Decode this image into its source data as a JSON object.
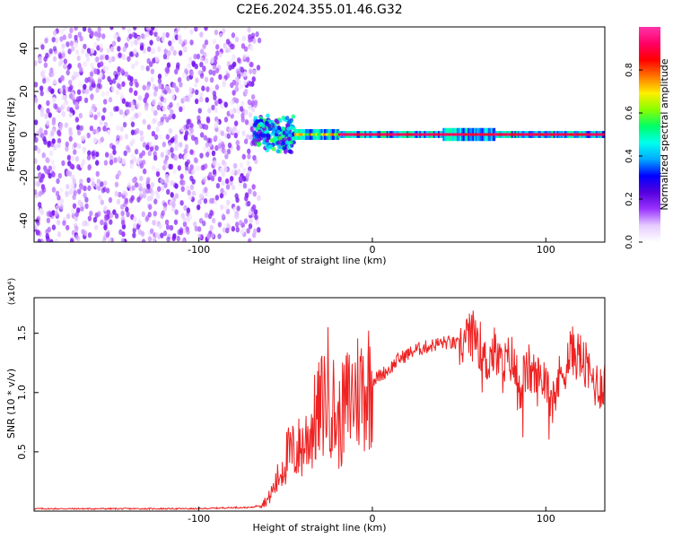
{
  "figure": {
    "title": "C2E6.2024.355.01.46.G32"
  },
  "chart_data": [
    {
      "type": "heatmap",
      "xlabel": "Height of straight line (km)",
      "ylabel": "Frequency (Hz)",
      "xlim": [
        -195,
        134
      ],
      "ylim": [
        -50,
        50
      ],
      "x_ticks": [
        -100,
        0,
        100
      ],
      "y_ticks": [
        -40,
        -20,
        0,
        20,
        40
      ],
      "colorbar": {
        "label": "Normalized spectral amplitude",
        "range": [
          0,
          1
        ],
        "ticks": [
          "0.0",
          "0.2",
          "0.4",
          "0.6",
          "0.8"
        ],
        "colors": [
          "#ffffff",
          "#e6ccff",
          "#9933ff",
          "#5500dd",
          "#0000ff",
          "#00aaff",
          "#00ffee",
          "#00ff66",
          "#88ff00",
          "#ffee00",
          "#ff7700",
          "#ff0000",
          "#ff0066",
          "#ff33aa"
        ]
      },
      "regions": [
        {
          "name": "noise",
          "x_range": [
            -195,
            -65
          ],
          "freq_range": [
            -50,
            50
          ],
          "amplitude": 0.1
        },
        {
          "name": "onset",
          "x_range": [
            -68,
            -45
          ],
          "freq_range": [
            -10,
            8
          ],
          "amplitude": 0.35
        },
        {
          "name": "signal",
          "x_range": [
            -45,
            134
          ],
          "frequency_hz": 0,
          "amplitude": 0.95
        }
      ],
      "grid": false,
      "legend": "colorbar-right"
    },
    {
      "type": "line",
      "xlabel": "Height of straight line (km)",
      "ylabel": "SNR (10 * v/v)",
      "y_scale_label": "(x10⁴)",
      "y_multiplier": 10000,
      "xlim": [
        -195,
        134
      ],
      "ylim": [
        0,
        1.8
      ],
      "x_ticks": [
        -100,
        0,
        100
      ],
      "y_ticks": [
        "0.5",
        "1.0",
        "1.5"
      ],
      "color": "#ee2222",
      "series": [
        {
          "x": [
            -195,
            -180,
            -160,
            -140,
            -120,
            -100,
            -80,
            -70,
            -65,
            -60,
            -55,
            -50,
            -45,
            -40,
            -35,
            -30,
            -25,
            -20,
            -15,
            -10,
            -5,
            0,
            5,
            10,
            15,
            20,
            25,
            30,
            35,
            40,
            45,
            50,
            55,
            60,
            65,
            70,
            75,
            80,
            85,
            90,
            95,
            100,
            105,
            110,
            115,
            120,
            125,
            130,
            134
          ],
          "values": [
            0.02,
            0.02,
            0.02,
            0.02,
            0.02,
            0.02,
            0.03,
            0.03,
            0.05,
            0.1,
            0.25,
            0.45,
            0.5,
            0.55,
            0.7,
            0.85,
            1.05,
            0.7,
            0.9,
            1.0,
            1.05,
            1.1,
            1.15,
            1.2,
            1.28,
            1.32,
            1.36,
            1.38,
            1.4,
            1.42,
            1.42,
            1.4,
            1.45,
            1.5,
            1.25,
            1.35,
            1.2,
            1.3,
            1.05,
            1.2,
            1.1,
            1.15,
            1.0,
            1.2,
            1.35,
            1.3,
            1.15,
            1.05,
            1.1
          ]
        }
      ],
      "grid": false
    }
  ]
}
